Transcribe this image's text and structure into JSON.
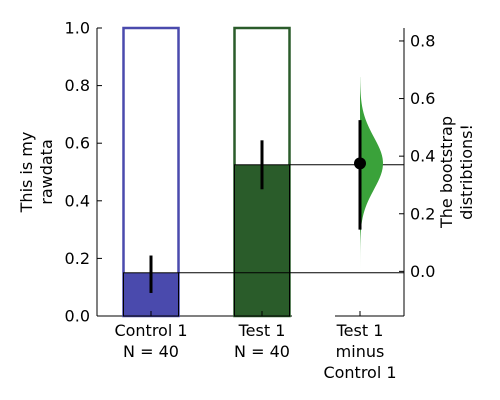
{
  "chart_data": [
    {
      "type": "bar",
      "ylabel_lines": [
        "This is my",
        "rawdata"
      ],
      "ylim": [
        0,
        1.0
      ],
      "yticks": [
        "0.0",
        "0.2",
        "0.4",
        "0.6",
        "0.8",
        "1.0"
      ],
      "grid": false,
      "categories": [
        {
          "name": "Control 1",
          "n_label": "N = 40",
          "color": "#4a4aad",
          "value": 0.15,
          "ci": [
            0.08,
            0.21
          ]
        },
        {
          "name": "Test 1",
          "n_label": "N = 40",
          "color": "#2a5c2a",
          "value": 0.525,
          "ci": [
            0.44,
            0.61
          ]
        }
      ]
    },
    {
      "type": "violin",
      "ylabel_lines": [
        "The bootstrap",
        "distribtions!"
      ],
      "ylim": [
        -0.155,
        0.845
      ],
      "yticks": [
        "0.0",
        "0.2",
        "0.4",
        "0.6",
        "0.8"
      ],
      "category_lines": [
        "Test 1",
        "minus",
        "Control 1"
      ],
      "color": "#3aa23a",
      "mean_difference": 0.375,
      "ci": [
        0.145,
        0.525
      ],
      "distribution_range": [
        -0.005,
        0.675
      ]
    }
  ]
}
